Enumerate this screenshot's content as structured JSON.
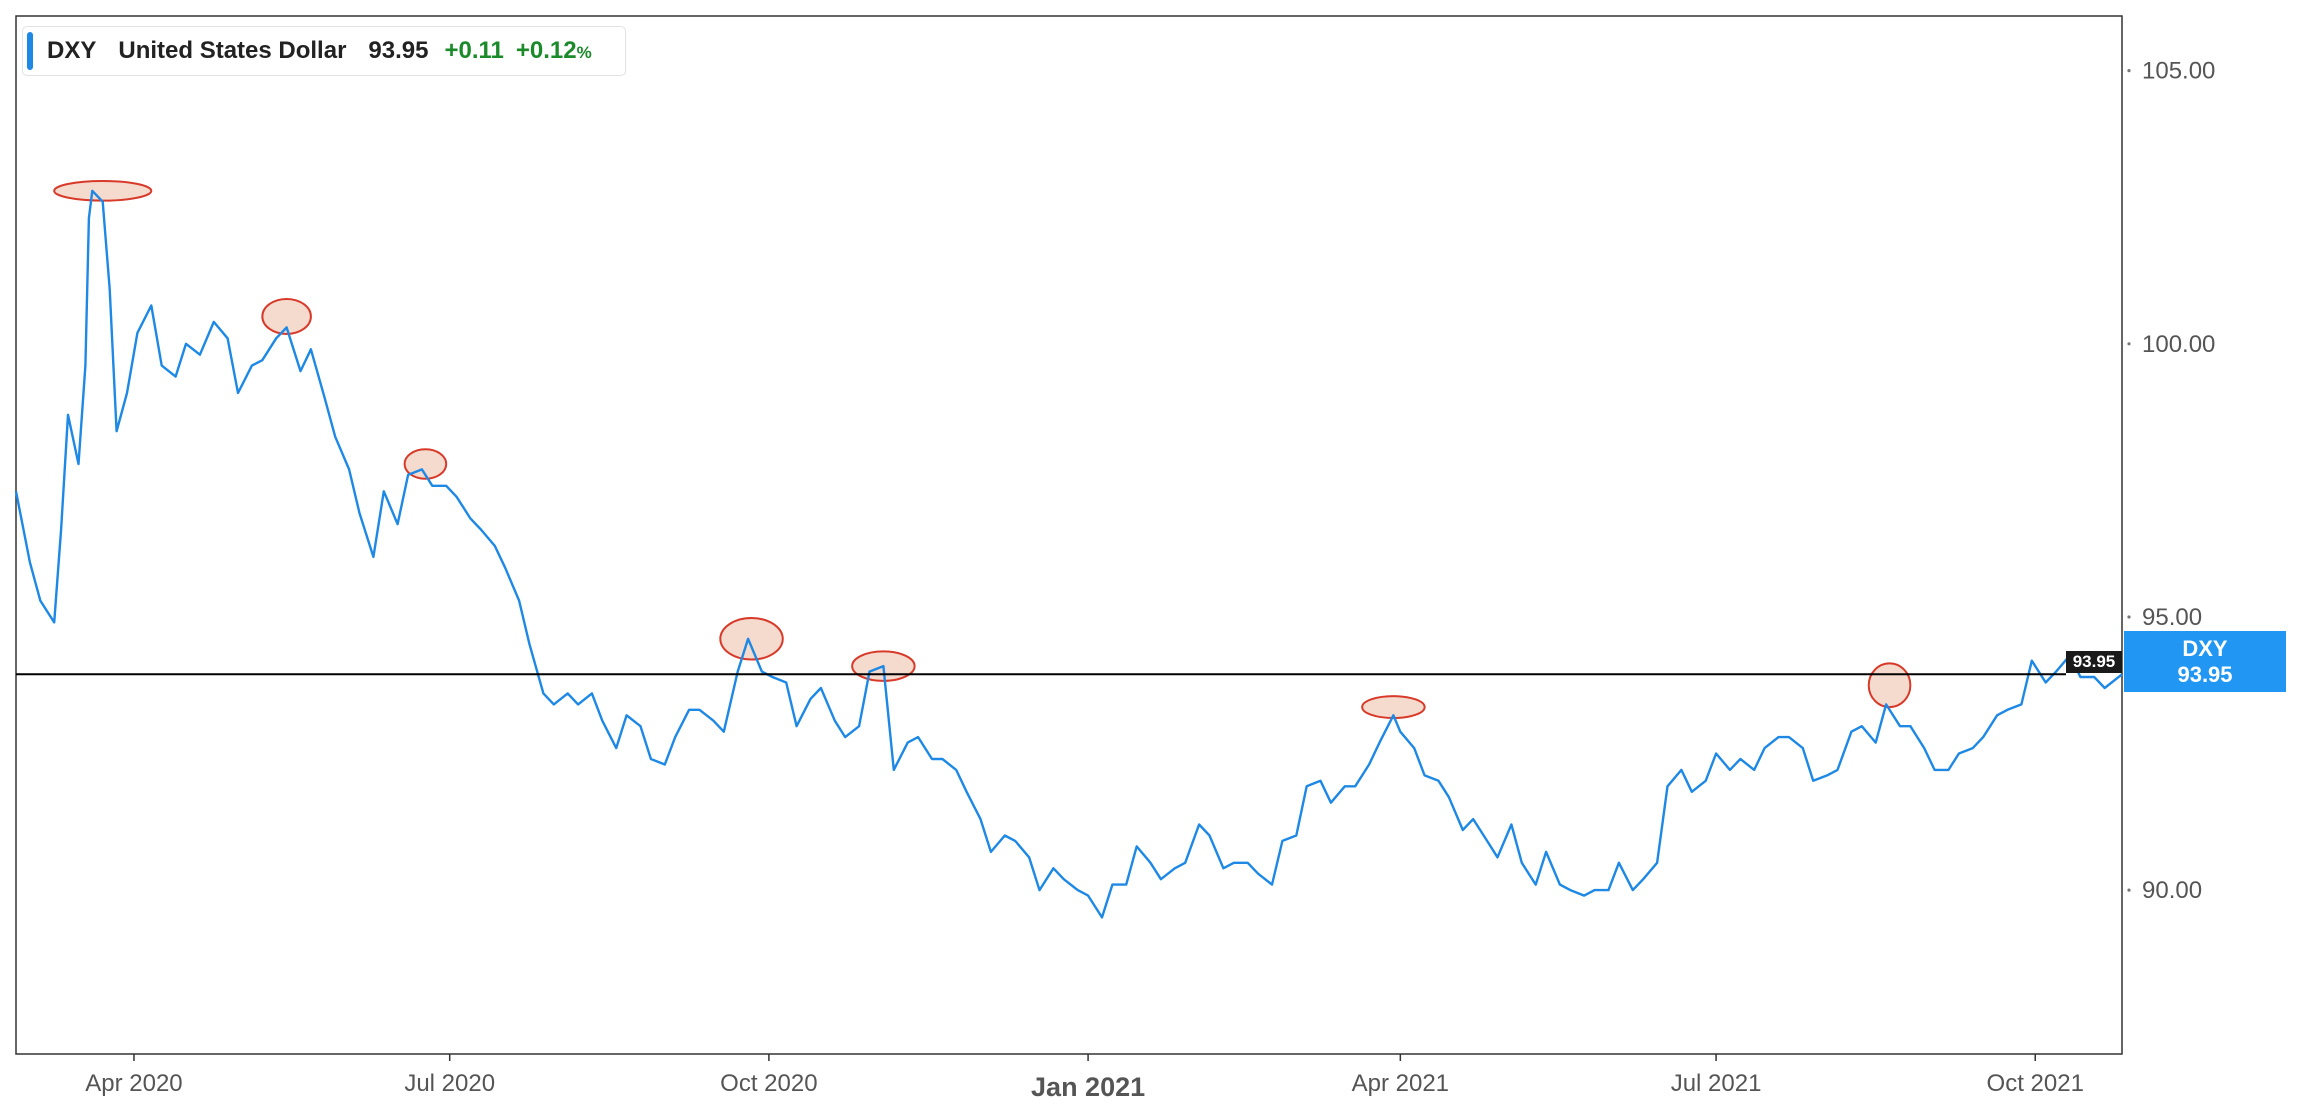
{
  "legend": {
    "symbol": "DXY",
    "name": "United States Dollar",
    "price": "93.95",
    "change": "+0.11",
    "change_pct": "+0.12",
    "pct_sign": "%",
    "color": "#1e88e5",
    "change_color": "#1b8a2a"
  },
  "price_tag": {
    "symbol": "DXY",
    "value": "93.95",
    "color": "#2196f3"
  },
  "hline": {
    "label": "93.95",
    "value": 93.95,
    "color": "#000000"
  },
  "chart_data": {
    "type": "line",
    "title": "",
    "xlabel": "",
    "ylabel": "",
    "ylim": [
      87.0,
      106.0
    ],
    "xlim": [
      "2020-02-27",
      "2021-10-26"
    ],
    "y_axis_position": "right",
    "grid": false,
    "yticks": [
      {
        "value": 105,
        "label": "105.00"
      },
      {
        "value": 100,
        "label": "100.00"
      },
      {
        "value": 95,
        "label": "95.00"
      },
      {
        "value": 90,
        "label": "90.00"
      }
    ],
    "xticks": [
      {
        "date": "2020-04-01",
        "label": "Apr 2020",
        "major": false
      },
      {
        "date": "2020-07-01",
        "label": "Jul 2020",
        "major": false
      },
      {
        "date": "2020-10-01",
        "label": "Oct 2020",
        "major": false
      },
      {
        "date": "2021-01-01",
        "label": "Jan 2021",
        "major": true
      },
      {
        "date": "2021-04-01",
        "label": "Apr 2021",
        "major": false
      },
      {
        "date": "2021-07-01",
        "label": "Jul 2021",
        "major": false
      },
      {
        "date": "2021-10-01",
        "label": "Oct 2021",
        "major": false
      }
    ],
    "series": [
      {
        "name": "DXY",
        "color": "#1e88e5",
        "points": [
          [
            "2020-02-27",
            97.3
          ],
          [
            "2020-03-02",
            96.0
          ],
          [
            "2020-03-05",
            95.3
          ],
          [
            "2020-03-09",
            94.9
          ],
          [
            "2020-03-11",
            96.6
          ],
          [
            "2020-03-13",
            98.7
          ],
          [
            "2020-03-16",
            97.8
          ],
          [
            "2020-03-18",
            99.6
          ],
          [
            "2020-03-19",
            102.3
          ],
          [
            "2020-03-20",
            102.8
          ],
          [
            "2020-03-23",
            102.6
          ],
          [
            "2020-03-25",
            101.0
          ],
          [
            "2020-03-27",
            98.4
          ],
          [
            "2020-03-30",
            99.1
          ],
          [
            "2020-04-02",
            100.2
          ],
          [
            "2020-04-06",
            100.7
          ],
          [
            "2020-04-09",
            99.6
          ],
          [
            "2020-04-13",
            99.4
          ],
          [
            "2020-04-16",
            100.0
          ],
          [
            "2020-04-20",
            99.8
          ],
          [
            "2020-04-24",
            100.4
          ],
          [
            "2020-04-28",
            100.1
          ],
          [
            "2020-05-01",
            99.1
          ],
          [
            "2020-05-05",
            99.6
          ],
          [
            "2020-05-08",
            99.7
          ],
          [
            "2020-05-12",
            100.1
          ],
          [
            "2020-05-15",
            100.3
          ],
          [
            "2020-05-19",
            99.5
          ],
          [
            "2020-05-22",
            99.9
          ],
          [
            "2020-05-26",
            99.0
          ],
          [
            "2020-05-29",
            98.3
          ],
          [
            "2020-06-02",
            97.7
          ],
          [
            "2020-06-05",
            96.9
          ],
          [
            "2020-06-09",
            96.1
          ],
          [
            "2020-06-12",
            97.3
          ],
          [
            "2020-06-16",
            96.7
          ],
          [
            "2020-06-19",
            97.6
          ],
          [
            "2020-06-23",
            97.7
          ],
          [
            "2020-06-26",
            97.4
          ],
          [
            "2020-06-30",
            97.4
          ],
          [
            "2020-07-03",
            97.2
          ],
          [
            "2020-07-07",
            96.8
          ],
          [
            "2020-07-10",
            96.6
          ],
          [
            "2020-07-14",
            96.3
          ],
          [
            "2020-07-17",
            95.9
          ],
          [
            "2020-07-21",
            95.3
          ],
          [
            "2020-07-24",
            94.5
          ],
          [
            "2020-07-28",
            93.6
          ],
          [
            "2020-07-31",
            93.4
          ],
          [
            "2020-08-04",
            93.6
          ],
          [
            "2020-08-07",
            93.4
          ],
          [
            "2020-08-11",
            93.6
          ],
          [
            "2020-08-14",
            93.1
          ],
          [
            "2020-08-18",
            92.6
          ],
          [
            "2020-08-21",
            93.2
          ],
          [
            "2020-08-25",
            93.0
          ],
          [
            "2020-08-28",
            92.4
          ],
          [
            "2020-09-01",
            92.3
          ],
          [
            "2020-09-04",
            92.8
          ],
          [
            "2020-09-08",
            93.3
          ],
          [
            "2020-09-11",
            93.3
          ],
          [
            "2020-09-15",
            93.1
          ],
          [
            "2020-09-18",
            92.9
          ],
          [
            "2020-09-22",
            94.0
          ],
          [
            "2020-09-25",
            94.6
          ],
          [
            "2020-09-29",
            94.0
          ],
          [
            "2020-10-02",
            93.9
          ],
          [
            "2020-10-06",
            93.8
          ],
          [
            "2020-10-09",
            93.0
          ],
          [
            "2020-10-13",
            93.5
          ],
          [
            "2020-10-16",
            93.7
          ],
          [
            "2020-10-20",
            93.1
          ],
          [
            "2020-10-23",
            92.8
          ],
          [
            "2020-10-27",
            93.0
          ],
          [
            "2020-10-30",
            94.0
          ],
          [
            "2020-11-03",
            94.1
          ],
          [
            "2020-11-06",
            92.2
          ],
          [
            "2020-11-10",
            92.7
          ],
          [
            "2020-11-13",
            92.8
          ],
          [
            "2020-11-17",
            92.4
          ],
          [
            "2020-11-20",
            92.4
          ],
          [
            "2020-11-24",
            92.2
          ],
          [
            "2020-11-27",
            91.8
          ],
          [
            "2020-12-01",
            91.3
          ],
          [
            "2020-12-04",
            90.7
          ],
          [
            "2020-12-08",
            91.0
          ],
          [
            "2020-12-11",
            90.9
          ],
          [
            "2020-12-15",
            90.6
          ],
          [
            "2020-12-18",
            90.0
          ],
          [
            "2020-12-22",
            90.4
          ],
          [
            "2020-12-25",
            90.2
          ],
          [
            "2020-12-29",
            90.0
          ],
          [
            "2021-01-01",
            89.9
          ],
          [
            "2021-01-05",
            89.5
          ],
          [
            "2021-01-08",
            90.1
          ],
          [
            "2021-01-12",
            90.1
          ],
          [
            "2021-01-15",
            90.8
          ],
          [
            "2021-01-19",
            90.5
          ],
          [
            "2021-01-22",
            90.2
          ],
          [
            "2021-01-26",
            90.4
          ],
          [
            "2021-01-29",
            90.5
          ],
          [
            "2021-02-02",
            91.2
          ],
          [
            "2021-02-05",
            91.0
          ],
          [
            "2021-02-09",
            90.4
          ],
          [
            "2021-02-12",
            90.5
          ],
          [
            "2021-02-16",
            90.5
          ],
          [
            "2021-02-19",
            90.3
          ],
          [
            "2021-02-23",
            90.1
          ],
          [
            "2021-02-26",
            90.9
          ],
          [
            "2021-03-02",
            91.0
          ],
          [
            "2021-03-05",
            91.9
          ],
          [
            "2021-03-09",
            92.0
          ],
          [
            "2021-03-12",
            91.6
          ],
          [
            "2021-03-16",
            91.9
          ],
          [
            "2021-03-19",
            91.9
          ],
          [
            "2021-03-23",
            92.3
          ],
          [
            "2021-03-26",
            92.7
          ],
          [
            "2021-03-30",
            93.2
          ],
          [
            "2021-04-01",
            92.9
          ],
          [
            "2021-04-05",
            92.6
          ],
          [
            "2021-04-08",
            92.1
          ],
          [
            "2021-04-12",
            92.0
          ],
          [
            "2021-04-15",
            91.7
          ],
          [
            "2021-04-19",
            91.1
          ],
          [
            "2021-04-22",
            91.3
          ],
          [
            "2021-04-26",
            90.9
          ],
          [
            "2021-04-29",
            90.6
          ],
          [
            "2021-05-03",
            91.2
          ],
          [
            "2021-05-06",
            90.5
          ],
          [
            "2021-05-10",
            90.1
          ],
          [
            "2021-05-13",
            90.7
          ],
          [
            "2021-05-17",
            90.1
          ],
          [
            "2021-05-20",
            90.0
          ],
          [
            "2021-05-24",
            89.9
          ],
          [
            "2021-05-27",
            90.0
          ],
          [
            "2021-05-31",
            90.0
          ],
          [
            "2021-06-03",
            90.5
          ],
          [
            "2021-06-07",
            90.0
          ],
          [
            "2021-06-10",
            90.2
          ],
          [
            "2021-06-14",
            90.5
          ],
          [
            "2021-06-17",
            91.9
          ],
          [
            "2021-06-21",
            92.2
          ],
          [
            "2021-06-24",
            91.8
          ],
          [
            "2021-06-28",
            92.0
          ],
          [
            "2021-07-01",
            92.5
          ],
          [
            "2021-07-05",
            92.2
          ],
          [
            "2021-07-08",
            92.4
          ],
          [
            "2021-07-12",
            92.2
          ],
          [
            "2021-07-15",
            92.6
          ],
          [
            "2021-07-19",
            92.8
          ],
          [
            "2021-07-22",
            92.8
          ],
          [
            "2021-07-26",
            92.6
          ],
          [
            "2021-07-29",
            92.0
          ],
          [
            "2021-08-02",
            92.1
          ],
          [
            "2021-08-05",
            92.2
          ],
          [
            "2021-08-09",
            92.9
          ],
          [
            "2021-08-12",
            93.0
          ],
          [
            "2021-08-16",
            92.7
          ],
          [
            "2021-08-19",
            93.4
          ],
          [
            "2021-08-23",
            93.0
          ],
          [
            "2021-08-26",
            93.0
          ],
          [
            "2021-08-30",
            92.6
          ],
          [
            "2021-09-02",
            92.2
          ],
          [
            "2021-09-06",
            92.2
          ],
          [
            "2021-09-09",
            92.5
          ],
          [
            "2021-09-13",
            92.6
          ],
          [
            "2021-09-16",
            92.8
          ],
          [
            "2021-09-20",
            93.2
          ],
          [
            "2021-09-23",
            93.3
          ],
          [
            "2021-09-27",
            93.4
          ],
          [
            "2021-09-30",
            94.2
          ],
          [
            "2021-10-04",
            93.8
          ],
          [
            "2021-10-07",
            94.0
          ],
          [
            "2021-10-11",
            94.3
          ],
          [
            "2021-10-14",
            93.9
          ],
          [
            "2021-10-18",
            93.9
          ],
          [
            "2021-10-21",
            93.7
          ],
          [
            "2021-10-26",
            93.95
          ]
        ]
      }
    ],
    "annotations": [
      {
        "shape": "ellipse",
        "date": "2020-03-23",
        "value": 102.8,
        "rx_days": 14,
        "ry_value": 0.18,
        "fill": "#f3d3c6",
        "stroke": "#d83a2a"
      },
      {
        "shape": "ellipse",
        "date": "2020-05-15",
        "value": 100.5,
        "rx_days": 7,
        "ry_value": 0.32,
        "fill": "#f3d3c6",
        "stroke": "#d83a2a"
      },
      {
        "shape": "ellipse",
        "date": "2020-06-24",
        "value": 97.8,
        "rx_days": 6,
        "ry_value": 0.27,
        "fill": "#f3d3c6",
        "stroke": "#d83a2a"
      },
      {
        "shape": "ellipse",
        "date": "2020-09-26",
        "value": 94.6,
        "rx_days": 9,
        "ry_value": 0.38,
        "fill": "#f3d3c6",
        "stroke": "#d83a2a"
      },
      {
        "shape": "ellipse",
        "date": "2020-11-03",
        "value": 94.1,
        "rx_days": 9,
        "ry_value": 0.27,
        "fill": "#f3d3c6",
        "stroke": "#d83a2a"
      },
      {
        "shape": "ellipse",
        "date": "2021-03-30",
        "value": 93.35,
        "rx_days": 9,
        "ry_value": 0.2,
        "fill": "#f3d3c6",
        "stroke": "#d83a2a"
      },
      {
        "shape": "ellipse",
        "date": "2021-08-20",
        "value": 93.75,
        "rx_days": 6,
        "ry_value": 0.4,
        "fill": "#f3d3c6",
        "stroke": "#d83a2a"
      }
    ]
  }
}
